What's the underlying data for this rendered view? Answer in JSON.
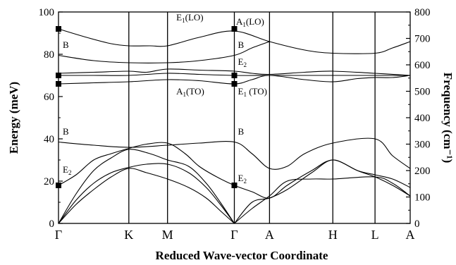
{
  "chart_data": {
    "type": "line",
    "xlabel": "Reduced Wave-vector Coordinate",
    "ylabel": "Energy (meV)",
    "y2label": "Frequency (cm⁻¹)",
    "ylim": [
      0,
      100
    ],
    "y2lim": [
      0,
      800
    ],
    "y_ticks": [
      "0",
      "20",
      "40",
      "60",
      "80",
      "100"
    ],
    "y2_ticks": [
      "0",
      "100",
      "200",
      "300",
      "400",
      "500",
      "600",
      "700",
      "800"
    ],
    "k_points": [
      {
        "label": "Γ",
        "x": 0
      },
      {
        "label": "K",
        "x": 0.2
      },
      {
        "label": "M",
        "x": 0.31
      },
      {
        "label": "Γ",
        "x": 0.5
      },
      {
        "label": "A",
        "x": 0.6
      },
      {
        "label": "H",
        "x": 0.78
      },
      {
        "label": "L",
        "x": 0.9
      },
      {
        "label": "A",
        "x": 1.0
      }
    ],
    "series": [
      {
        "values": [
          [
            0,
            92
          ],
          [
            0.08,
            88
          ],
          [
            0.15,
            85
          ],
          [
            0.2,
            84
          ],
          [
            0.26,
            84
          ],
          [
            0.31,
            84
          ],
          [
            0.4,
            88
          ],
          [
            0.5,
            91
          ],
          [
            0.6,
            86
          ],
          [
            0.7,
            82
          ],
          [
            0.78,
            80.5
          ],
          [
            0.9,
            80.5
          ],
          [
            0.95,
            83
          ],
          [
            1.0,
            86
          ]
        ]
      },
      {
        "values": [
          [
            0,
            79.5
          ],
          [
            0.1,
            77
          ],
          [
            0.2,
            76
          ],
          [
            0.31,
            76
          ],
          [
            0.4,
            77
          ],
          [
            0.5,
            79.5
          ],
          [
            0.55,
            83
          ],
          [
            0.6,
            86
          ]
        ]
      },
      {
        "values": [
          [
            0,
            71
          ],
          [
            0.1,
            71.5
          ],
          [
            0.2,
            72
          ],
          [
            0.25,
            71.5
          ],
          [
            0.31,
            73
          ],
          [
            0.4,
            72.5
          ],
          [
            0.5,
            72
          ],
          [
            0.55,
            71
          ],
          [
            0.6,
            70.5
          ],
          [
            0.7,
            71.5
          ],
          [
            0.78,
            72
          ],
          [
            0.9,
            71
          ],
          [
            1.0,
            70
          ]
        ]
      },
      {
        "values": [
          [
            0,
            70
          ],
          [
            0.1,
            70
          ],
          [
            0.2,
            70
          ],
          [
            0.31,
            71
          ],
          [
            0.4,
            70.5
          ],
          [
            0.5,
            70
          ],
          [
            0.6,
            70
          ],
          [
            0.7,
            70
          ],
          [
            0.78,
            70
          ],
          [
            0.9,
            70
          ],
          [
            1.0,
            70
          ]
        ]
      },
      {
        "values": [
          [
            0,
            66
          ],
          [
            0.1,
            66.5
          ],
          [
            0.2,
            67
          ],
          [
            0.31,
            68
          ],
          [
            0.4,
            67.5
          ],
          [
            0.5,
            66
          ],
          [
            0.55,
            68
          ],
          [
            0.6,
            70
          ],
          [
            0.7,
            68
          ],
          [
            0.78,
            67
          ],
          [
            0.85,
            68.5
          ],
          [
            0.9,
            69
          ],
          [
            0.95,
            69
          ],
          [
            1.0,
            70
          ]
        ]
      },
      {
        "values": [
          [
            0,
            38.5
          ],
          [
            0.1,
            37
          ],
          [
            0.2,
            36
          ],
          [
            0.31,
            37
          ],
          [
            0.4,
            38
          ],
          [
            0.5,
            38.5
          ],
          [
            0.55,
            33
          ],
          [
            0.6,
            26
          ],
          [
            0.65,
            27
          ],
          [
            0.7,
            33
          ],
          [
            0.78,
            38
          ],
          [
            0.9,
            40
          ],
          [
            0.95,
            32
          ],
          [
            1.0,
            26
          ]
        ]
      },
      {
        "values": [
          [
            0,
            18
          ],
          [
            0.05,
            23
          ],
          [
            0.1,
            30
          ],
          [
            0.15,
            33
          ],
          [
            0.2,
            35.5
          ],
          [
            0.25,
            37.5
          ],
          [
            0.31,
            38
          ],
          [
            0.36,
            33
          ],
          [
            0.4,
            27
          ],
          [
            0.45,
            22
          ],
          [
            0.5,
            18
          ],
          [
            0.55,
            15
          ],
          [
            0.6,
            12
          ],
          [
            0.65,
            18
          ],
          [
            0.72,
            25
          ],
          [
            0.78,
            30
          ],
          [
            0.85,
            25
          ],
          [
            0.9,
            22
          ],
          [
            0.95,
            18
          ],
          [
            1.0,
            13
          ]
        ]
      },
      {
        "values": [
          [
            0,
            0
          ],
          [
            0.05,
            14
          ],
          [
            0.1,
            25
          ],
          [
            0.15,
            31
          ],
          [
            0.2,
            35
          ],
          [
            0.26,
            33
          ],
          [
            0.31,
            30
          ],
          [
            0.37,
            27
          ],
          [
            0.42,
            19
          ],
          [
            0.46,
            10
          ],
          [
            0.5,
            0
          ]
        ]
      },
      {
        "values": [
          [
            0,
            0
          ],
          [
            0.05,
            11
          ],
          [
            0.1,
            19
          ],
          [
            0.15,
            24
          ],
          [
            0.2,
            26.5
          ],
          [
            0.25,
            28
          ],
          [
            0.31,
            28
          ],
          [
            0.37,
            24
          ],
          [
            0.42,
            17
          ],
          [
            0.46,
            9
          ],
          [
            0.5,
            0
          ]
        ]
      },
      {
        "values": [
          [
            0,
            0
          ],
          [
            0.05,
            9
          ],
          [
            0.1,
            16
          ],
          [
            0.15,
            22
          ],
          [
            0.2,
            26
          ],
          [
            0.25,
            24
          ],
          [
            0.31,
            21
          ],
          [
            0.37,
            17
          ],
          [
            0.42,
            12
          ],
          [
            0.46,
            6
          ],
          [
            0.5,
            0
          ]
        ]
      },
      {
        "values": [
          [
            0.5,
            0
          ],
          [
            0.55,
            7
          ],
          [
            0.6,
            13
          ],
          [
            0.65,
            20
          ],
          [
            0.72,
            21
          ],
          [
            0.78,
            21
          ],
          [
            0.9,
            22
          ],
          [
            0.95,
            19
          ],
          [
            1.0,
            13
          ]
        ]
      },
      {
        "values": [
          [
            0.5,
            0
          ],
          [
            0.55,
            10
          ],
          [
            0.6,
            12
          ],
          [
            0.65,
            16
          ],
          [
            0.72,
            24
          ],
          [
            0.78,
            30
          ],
          [
            0.85,
            25
          ],
          [
            0.9,
            23
          ],
          [
            0.95,
            21
          ],
          [
            1.0,
            17
          ]
        ]
      }
    ],
    "markers": [
      {
        "x": 0,
        "y": 92
      },
      {
        "x": 0,
        "y": 70
      },
      {
        "x": 0,
        "y": 66
      },
      {
        "x": 0,
        "y": 18
      },
      {
        "x": 0.5,
        "y": 92
      },
      {
        "x": 0.5,
        "y": 70
      },
      {
        "x": 0.5,
        "y": 66
      },
      {
        "x": 0.5,
        "y": 18
      }
    ],
    "annotations": [
      {
        "main": "E",
        "sub": "1",
        "suffix": "(LO)",
        "x": 0.335,
        "y": 96
      },
      {
        "main": "A",
        "sub": "1",
        "suffix": "(LO)",
        "x": 0.505,
        "y": 94
      },
      {
        "main": "B",
        "sub": "",
        "suffix": "",
        "x": 0.012,
        "y": 83
      },
      {
        "main": "B",
        "sub": "",
        "suffix": "",
        "x": 0.51,
        "y": 83
      },
      {
        "main": "E",
        "sub": "2",
        "suffix": "",
        "x": 0.51,
        "y": 75
      },
      {
        "main": "A",
        "sub": "1",
        "suffix": "(TO)",
        "x": 0.335,
        "y": 61
      },
      {
        "main": "E",
        "sub": "1",
        "suffix": " (TO)",
        "x": 0.51,
        "y": 61
      },
      {
        "main": "B",
        "sub": "",
        "suffix": "",
        "x": 0.012,
        "y": 42
      },
      {
        "main": "B",
        "sub": "",
        "suffix": "",
        "x": 0.51,
        "y": 42
      },
      {
        "main": "E",
        "sub": "2",
        "suffix": "",
        "x": 0.012,
        "y": 24
      },
      {
        "main": "E",
        "sub": "2",
        "suffix": "",
        "x": 0.51,
        "y": 20
      }
    ]
  }
}
